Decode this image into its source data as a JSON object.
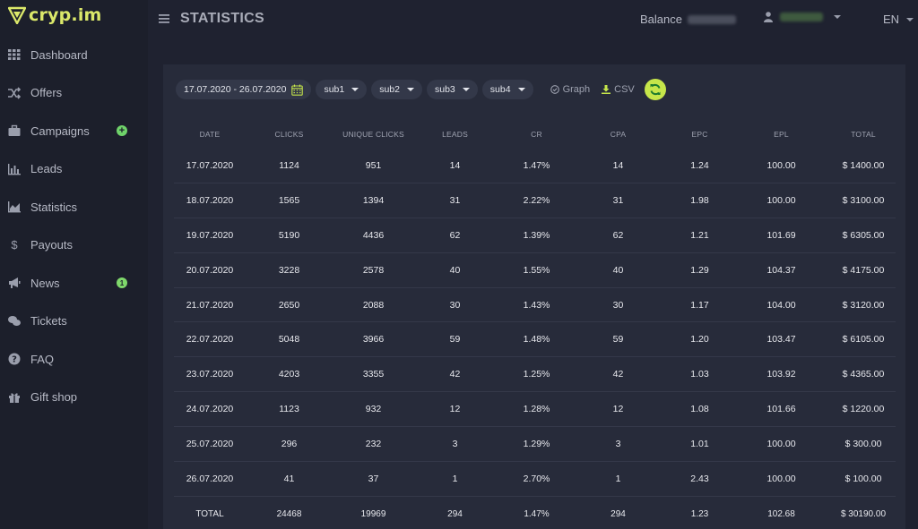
{
  "brand": {
    "name": "cryp.im"
  },
  "sidebar": {
    "items": [
      {
        "label": "Dashboard",
        "icon": "grid-icon"
      },
      {
        "label": "Offers",
        "icon": "shuffle-icon"
      },
      {
        "label": "Campaigns",
        "icon": "briefcase-icon",
        "extra": "+"
      },
      {
        "label": "Leads",
        "icon": "bar-chart-icon"
      },
      {
        "label": "Statistics",
        "icon": "area-chart-icon"
      },
      {
        "label": "Payouts",
        "icon": "dollar-icon"
      },
      {
        "label": "News",
        "icon": "megaphone-icon",
        "badge": "1"
      },
      {
        "label": "Tickets",
        "icon": "chat-icon"
      },
      {
        "label": "FAQ",
        "icon": "question-icon"
      },
      {
        "label": "Gift shop",
        "icon": "gift-icon"
      }
    ]
  },
  "header": {
    "title": "STATISTICS",
    "balance_label": "Balance",
    "language": "EN"
  },
  "filters": {
    "date_range": "17.07.2020 - 26.07.2020",
    "subs": [
      "sub1",
      "sub2",
      "sub3",
      "sub4"
    ],
    "graph_label": "Graph",
    "csv_label": "CSV"
  },
  "table": {
    "headers": [
      "DATE",
      "CLICKS",
      "UNIQUE CLICKS",
      "LEADS",
      "CR",
      "CPA",
      "EPC",
      "EPL",
      "TOTAL"
    ],
    "rows": [
      [
        "17.07.2020",
        "1124",
        "951",
        "14",
        "1.47%",
        "14",
        "1.24",
        "100.00",
        "$ 1400.00"
      ],
      [
        "18.07.2020",
        "1565",
        "1394",
        "31",
        "2.22%",
        "31",
        "1.98",
        "100.00",
        "$ 3100.00"
      ],
      [
        "19.07.2020",
        "5190",
        "4436",
        "62",
        "1.39%",
        "62",
        "1.21",
        "101.69",
        "$ 6305.00"
      ],
      [
        "20.07.2020",
        "3228",
        "2578",
        "40",
        "1.55%",
        "40",
        "1.29",
        "104.37",
        "$ 4175.00"
      ],
      [
        "21.07.2020",
        "2650",
        "2088",
        "30",
        "1.43%",
        "30",
        "1.17",
        "104.00",
        "$ 3120.00"
      ],
      [
        "22.07.2020",
        "5048",
        "3966",
        "59",
        "1.48%",
        "59",
        "1.20",
        "103.47",
        "$ 6105.00"
      ],
      [
        "23.07.2020",
        "4203",
        "3355",
        "42",
        "1.25%",
        "42",
        "1.03",
        "103.92",
        "$ 4365.00"
      ],
      [
        "24.07.2020",
        "1123",
        "932",
        "12",
        "1.28%",
        "12",
        "1.08",
        "101.66",
        "$ 1220.00"
      ],
      [
        "25.07.2020",
        "296",
        "232",
        "3",
        "1.29%",
        "3",
        "1.01",
        "100.00",
        "$ 300.00"
      ],
      [
        "26.07.2020",
        "41",
        "37",
        "1",
        "2.70%",
        "1",
        "2.43",
        "100.00",
        "$ 100.00"
      ]
    ],
    "total": [
      "TOTAL",
      "24468",
      "19969",
      "294",
      "1.47%",
      "294",
      "1.23",
      "102.68",
      "$ 30190.00"
    ]
  },
  "colors": {
    "accent": "#c6e64a",
    "badge": "#7fd86b",
    "background": "#1f2230",
    "panel": "#272b3a"
  }
}
